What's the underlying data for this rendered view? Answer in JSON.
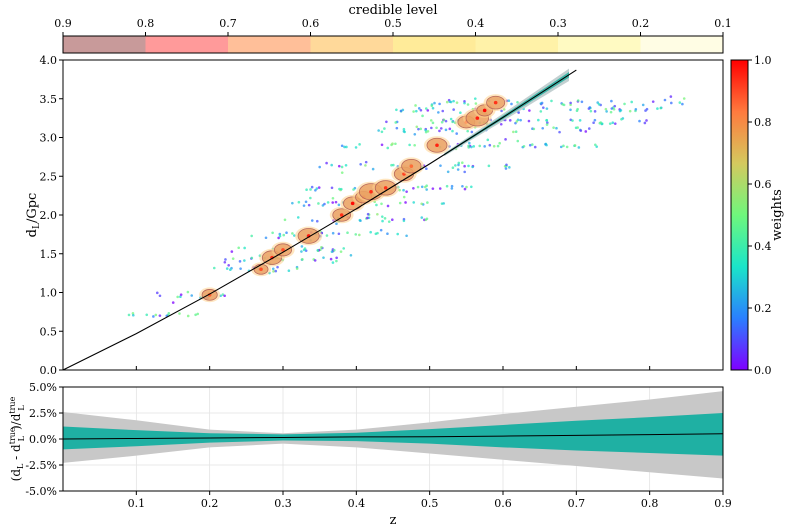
{
  "chart_data": [
    {
      "type": "colorbar",
      "title": "credible level",
      "ticks": [
        "0.9",
        "0.8",
        "0.7",
        "0.6",
        "0.5",
        "0.4",
        "0.3",
        "0.2",
        "0.1"
      ],
      "segment_colors": [
        "#c89a9a",
        "#ff9a9a",
        "#ffbf99",
        "#ffd99a",
        "#ffeb99",
        "#fff2a8",
        "#fffac2",
        "#fffde4"
      ]
    },
    {
      "type": "scatter",
      "ylabel": "dL/Gpc",
      "xlim": [
        0.0,
        0.9
      ],
      "ylim": [
        0.0,
        4.0
      ],
      "yticks": [
        "0.0",
        "0.5",
        "1.0",
        "1.5",
        "2.0",
        "2.5",
        "3.0",
        "3.5",
        "4.0"
      ],
      "colorbar": {
        "label": "weights",
        "range": [
          0.0,
          1.0
        ],
        "ticks": [
          "0.0",
          "0.2",
          "0.4",
          "0.6",
          "0.8",
          "1.0"
        ],
        "colors": [
          "#7f00ff",
          "#2a7fff",
          "#1ae5c9",
          "#6ff77c",
          "#d4c95e",
          "#ff7a3e",
          "#ff0000"
        ]
      },
      "curve": {
        "x": [
          0.0,
          0.1,
          0.2,
          0.3,
          0.4,
          0.5,
          0.6,
          0.7
        ],
        "y": [
          0.0,
          0.47,
          0.98,
          1.52,
          2.08,
          2.66,
          3.26,
          3.87
        ]
      },
      "host_rows": [
        {
          "y": 0.72,
          "xmin": 0.09,
          "xmax": 0.19
        },
        {
          "y": 0.95,
          "xmin": 0.12,
          "xmax": 0.23
        },
        {
          "y": 1.3,
          "xmin": 0.2,
          "xmax": 0.32
        },
        {
          "y": 1.42,
          "xmin": 0.22,
          "xmax": 0.38
        },
        {
          "y": 1.55,
          "xmin": 0.23,
          "xmax": 0.4
        },
        {
          "y": 1.75,
          "xmin": 0.25,
          "xmax": 0.47
        },
        {
          "y": 1.95,
          "xmin": 0.28,
          "xmax": 0.5
        },
        {
          "y": 2.15,
          "xmin": 0.31,
          "xmax": 0.52
        },
        {
          "y": 2.35,
          "xmin": 0.33,
          "xmax": 0.57
        },
        {
          "y": 2.62,
          "xmin": 0.35,
          "xmax": 0.62
        },
        {
          "y": 2.9,
          "xmin": 0.38,
          "xmax": 0.73
        },
        {
          "y": 3.1,
          "xmin": 0.43,
          "xmax": 0.74
        },
        {
          "y": 3.2,
          "xmin": 0.44,
          "xmax": 0.8
        },
        {
          "y": 3.35,
          "xmin": 0.45,
          "xmax": 0.82
        },
        {
          "y": 3.45,
          "xmin": 0.47,
          "xmax": 0.85
        }
      ],
      "events": [
        {
          "x": 0.2,
          "y": 0.97
        },
        {
          "x": 0.27,
          "y": 1.3
        },
        {
          "x": 0.285,
          "y": 1.45
        },
        {
          "x": 0.3,
          "y": 1.55
        },
        {
          "x": 0.335,
          "y": 1.73
        },
        {
          "x": 0.38,
          "y": 2.0
        },
        {
          "x": 0.395,
          "y": 2.15
        },
        {
          "x": 0.41,
          "y": 2.23
        },
        {
          "x": 0.42,
          "y": 2.3
        },
        {
          "x": 0.44,
          "y": 2.35
        },
        {
          "x": 0.465,
          "y": 2.53
        },
        {
          "x": 0.475,
          "y": 2.63
        },
        {
          "x": 0.51,
          "y": 2.9
        },
        {
          "x": 0.55,
          "y": 3.2
        },
        {
          "x": 0.565,
          "y": 3.25
        },
        {
          "x": 0.575,
          "y": 3.35
        },
        {
          "x": 0.59,
          "y": 3.45
        }
      ]
    },
    {
      "type": "area",
      "xlabel": "z",
      "ylabel": "(dL - dL^true)/dL^true",
      "xlim": [
        0.0,
        0.9
      ],
      "ylim": [
        -5.0,
        5.0
      ],
      "xticks": [
        "0.1",
        "0.2",
        "0.3",
        "0.4",
        "0.5",
        "0.6",
        "0.7",
        "0.8",
        "0.9"
      ],
      "yticks": [
        "5.0%",
        "2.5%",
        "0.0%",
        "-2.5%",
        "-5.0%"
      ],
      "x": [
        0.0,
        0.1,
        0.2,
        0.3,
        0.4,
        0.5,
        0.6,
        0.7,
        0.8,
        0.9
      ],
      "band_outer": {
        "upper": [
          2.6,
          1.8,
          0.9,
          0.55,
          0.9,
          1.6,
          2.4,
          3.1,
          3.8,
          4.6
        ],
        "lower": [
          -2.3,
          -1.6,
          -0.8,
          -0.45,
          -0.8,
          -1.4,
          -2.0,
          -2.6,
          -3.2,
          -3.8
        ]
      },
      "band_inner": {
        "upper": [
          1.2,
          0.85,
          0.55,
          0.45,
          0.6,
          0.95,
          1.35,
          1.75,
          2.1,
          2.5
        ],
        "lower": [
          -1.0,
          -0.7,
          -0.35,
          -0.15,
          -0.2,
          -0.45,
          -0.8,
          -1.1,
          -1.35,
          -1.6
        ]
      },
      "center": [
        0.0,
        0.05,
        0.1,
        0.15,
        0.2,
        0.22,
        0.28,
        0.35,
        0.42,
        0.5
      ]
    }
  ],
  "labels": {
    "cbar_title": "credible level",
    "ylabel_top_main": "d",
    "ylabel_top_sub": "L",
    "ylabel_top_rest": "/Gpc",
    "weights_label": "weights",
    "xlabel": "z",
    "resid_open": "(d",
    "resid_sub1": "L",
    "resid_mid": " - d",
    "resid_sup": "true",
    "resid_sub2": "L",
    "resid_close": ")/d",
    "resid_sup2": "true",
    "resid_sub3": "L"
  }
}
